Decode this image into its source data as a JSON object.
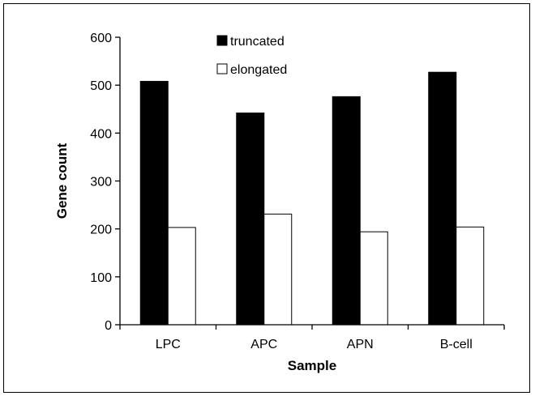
{
  "chart_data": {
    "type": "bar",
    "title": "",
    "xlabel": "Sample",
    "ylabel": "Gene count",
    "categories": [
      "LPC",
      "APC",
      "APN",
      "B-cell"
    ],
    "series": [
      {
        "name": "truncated",
        "values": [
          508,
          442,
          476,
          527
        ],
        "color": "#000000"
      },
      {
        "name": "elongated",
        "values": [
          203,
          231,
          194,
          204
        ],
        "color": "#ffffff"
      }
    ],
    "ylim": [
      0,
      600
    ],
    "yticks": [
      "0",
      "100",
      "200",
      "300",
      "400",
      "500",
      "600"
    ],
    "grid": false,
    "legend_position": "top-center"
  }
}
